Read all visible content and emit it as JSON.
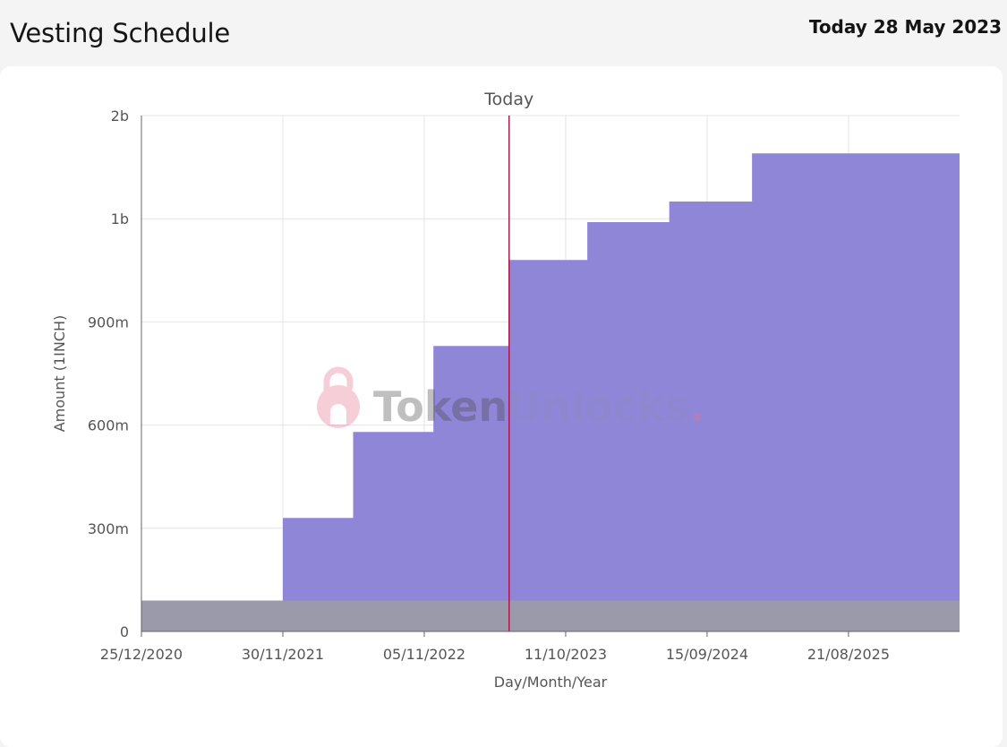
{
  "header": {
    "title": "Vesting Schedule",
    "today_label": "Today 28 May 2023"
  },
  "watermark": {
    "brand_part1": "Token",
    "brand_part2": "Unlocks",
    "brand_dot": "."
  },
  "chart_data": {
    "type": "area",
    "title": "",
    "xlabel": "Day/Month/Year",
    "ylabel": "Amount (1INCH)",
    "x_range": [
      "2020-12-25",
      "2026-05-15"
    ],
    "ylim": [
      0,
      1500000000
    ],
    "x_ticks": [
      {
        "date": "2020-12-25",
        "label": "25/12/2020"
      },
      {
        "date": "2021-11-30",
        "label": "30/11/2021"
      },
      {
        "date": "2022-11-05",
        "label": "05/11/2022"
      },
      {
        "date": "2023-10-11",
        "label": "11/10/2023"
      },
      {
        "date": "2024-09-15",
        "label": "15/09/2024"
      },
      {
        "date": "2025-08-21",
        "label": "21/08/2025"
      }
    ],
    "y_ticks": [
      {
        "value": 0,
        "label": "0"
      },
      {
        "value": 300000000,
        "label": "300m"
      },
      {
        "value": 600000000,
        "label": "600m"
      },
      {
        "value": 900000000,
        "label": "900m"
      },
      {
        "value": 1200000000,
        "label": "1b"
      },
      {
        "value": 1500000000,
        "label": "2b"
      }
    ],
    "grid": true,
    "today_marker": {
      "date": "2023-05-28",
      "label": "Today"
    },
    "series": [
      {
        "color": "#9086d8",
        "steps": [
          {
            "x": "2020-12-25",
            "y": 90000000
          },
          {
            "x": "2021-11-30",
            "y": 330000000
          },
          {
            "x": "2022-05-18",
            "y": 580000000
          },
          {
            "x": "2022-11-27",
            "y": 830000000
          },
          {
            "x": "2023-05-28",
            "y": 1080000000
          },
          {
            "x": "2023-12-02",
            "y": 1190000000
          },
          {
            "x": "2024-06-16",
            "y": 1250000000
          },
          {
            "x": "2025-01-01",
            "y": 1390000000
          },
          {
            "x": "2026-05-15",
            "y": 1390000000
          }
        ]
      },
      {
        "color": "#9a9aaa",
        "steps": [
          {
            "x": "2020-12-25",
            "y": 90000000
          },
          {
            "x": "2026-05-15",
            "y": 90000000
          }
        ]
      }
    ]
  }
}
